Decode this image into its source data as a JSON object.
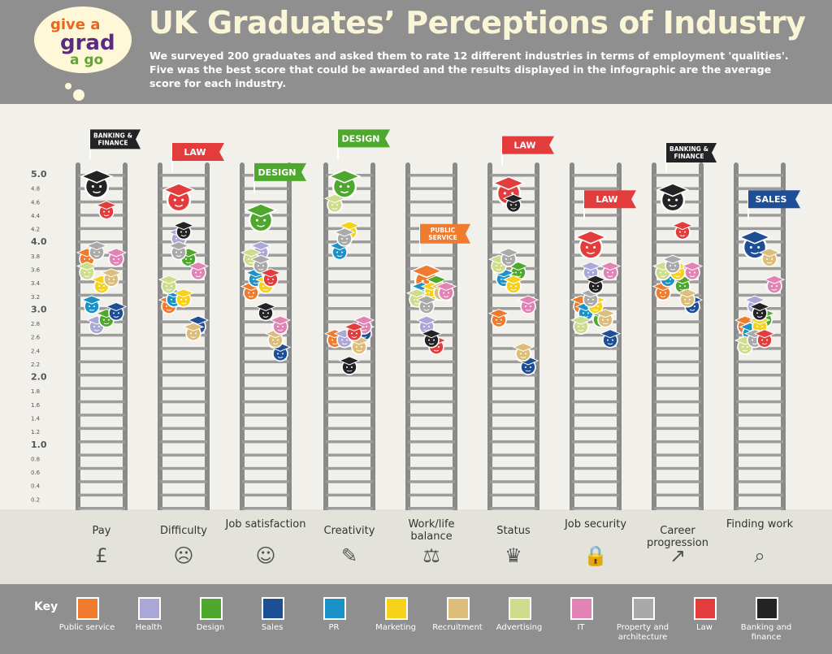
{
  "header": {
    "title": "UK Graduates’ Perceptions of Industry",
    "subtitle": "We surveyed 200 graduates and asked them to rate 12 different industries in terms of employment 'qualities'. Five was the best score that could be awarded and the results displayed in the infographic are the average score for each industry."
  },
  "logo": {
    "line1": "give a",
    "line2": "grad",
    "line3": "a go"
  },
  "key": {
    "label": "Key",
    "items": [
      {
        "name": "Public service",
        "color": "#f07a2e"
      },
      {
        "name": "Health",
        "color": "#a9a8d6"
      },
      {
        "name": "Design",
        "color": "#4ea82e"
      },
      {
        "name": "Sales",
        "color": "#1d4e96"
      },
      {
        "name": "PR",
        "color": "#1a92c8"
      },
      {
        "name": "Marketing",
        "color": "#f6d21a"
      },
      {
        "name": "Recruitment",
        "color": "#dcbe7a"
      },
      {
        "name": "Advertising",
        "color": "#cedd8c"
      },
      {
        "name": "IT",
        "color": "#e283b5"
      },
      {
        "name": "Property and architecture",
        "color": "#a9a9a9"
      },
      {
        "name": "Law",
        "color": "#e33c3c"
      },
      {
        "name": "Banking and finance",
        "color": "#232325"
      }
    ]
  },
  "chart_data": {
    "type": "scatter",
    "ylim": [
      0,
      5
    ],
    "yticks": [
      "5.0",
      "4.8",
      "4.6",
      "4.4",
      "4.2",
      "4.0",
      "3.8",
      "3.6",
      "3.4",
      "3.2",
      "3.0",
      "2.8",
      "2.6",
      "2.4",
      "2.2",
      "2.0",
      "1.8",
      "1.6",
      "1.4",
      "1.2",
      "1.0",
      "0.8",
      "0.6",
      "0.4",
      "0.2"
    ],
    "categories": [
      "Pay",
      "Difficulty",
      "Job satisfaction",
      "Creativity",
      "Work/life balance",
      "Status",
      "Job security",
      "Career progression",
      "Finding work"
    ],
    "category_icons": [
      "pound-icon",
      "sad-face-icon",
      "smile-face-icon",
      "paintbrush-icon",
      "scales-icon",
      "crown-icon",
      "padlock-icon",
      "trend-arrow-icon",
      "magnifier-icon"
    ],
    "winners": [
      {
        "category": "Pay",
        "label": "BANKING & FINANCE",
        "industry": "Banking and finance",
        "color": "#232325"
      },
      {
        "category": "Difficulty",
        "label": "LAW",
        "industry": "Law",
        "color": "#e33c3c"
      },
      {
        "category": "Job satisfaction",
        "label": "DESIGN",
        "industry": "Design",
        "color": "#4ea82e"
      },
      {
        "category": "Creativity",
        "label": "DESIGN",
        "industry": "Design",
        "color": "#4ea82e"
      },
      {
        "category": "Work/life balance",
        "label": "PUBLIC SERVICE",
        "industry": "Public service",
        "color": "#f07a2e"
      },
      {
        "category": "Status",
        "label": "LAW",
        "industry": "Law",
        "color": "#e33c3c"
      },
      {
        "category": "Job security",
        "label": "LAW",
        "industry": "Law",
        "color": "#e33c3c"
      },
      {
        "category": "Career progression",
        "label": "BANKING & FINANCE",
        "industry": "Banking and finance",
        "color": "#232325"
      },
      {
        "category": "Finding work",
        "label": "SALES",
        "industry": "Sales",
        "color": "#1d4e96"
      }
    ],
    "series": [
      {
        "name": "Public service",
        "values": [
          3.8,
          3.1,
          3.3,
          2.6,
          3.5,
          2.9,
          3.1,
          3.3,
          2.8
        ]
      },
      {
        "name": "Health",
        "values": [
          2.8,
          4.1,
          3.9,
          2.6,
          2.8,
          3.8,
          3.6,
          3.7,
          3.1
        ]
      },
      {
        "name": "Design",
        "values": [
          2.9,
          3.8,
          4.4,
          4.9,
          3.4,
          3.6,
          2.9,
          3.4,
          2.9
        ]
      },
      {
        "name": "Sales",
        "values": [
          3.0,
          2.8,
          2.4,
          2.7,
          3.3,
          2.2,
          2.6,
          3.1,
          4.0
        ]
      },
      {
        "name": "PR",
        "values": [
          3.1,
          3.2,
          3.5,
          3.9,
          3.3,
          3.5,
          3.0,
          3.5,
          2.7
        ]
      },
      {
        "name": "Marketing",
        "values": [
          3.4,
          3.2,
          3.4,
          4.2,
          3.3,
          3.4,
          3.1,
          3.6,
          2.8
        ]
      },
      {
        "name": "Recruitment",
        "values": [
          3.5,
          2.7,
          2.6,
          2.5,
          3.3,
          2.4,
          2.9,
          3.2,
          3.8
        ]
      },
      {
        "name": "Advertising",
        "values": [
          3.6,
          3.4,
          3.8,
          4.6,
          3.2,
          3.7,
          2.8,
          3.6,
          2.5
        ]
      },
      {
        "name": "IT",
        "values": [
          3.8,
          3.6,
          2.8,
          2.8,
          3.3,
          3.1,
          3.6,
          3.6,
          3.4
        ]
      },
      {
        "name": "Property and architecture",
        "values": [
          3.9,
          3.9,
          3.7,
          4.1,
          3.1,
          3.8,
          3.2,
          3.7,
          2.6
        ]
      },
      {
        "name": "Law",
        "values": [
          4.5,
          4.7,
          3.5,
          2.7,
          2.5,
          4.8,
          4.0,
          4.2,
          2.6
        ]
      },
      {
        "name": "Banking and finance",
        "values": [
          4.9,
          4.2,
          3.0,
          2.2,
          2.6,
          4.6,
          3.4,
          4.7,
          3.0
        ]
      }
    ]
  }
}
